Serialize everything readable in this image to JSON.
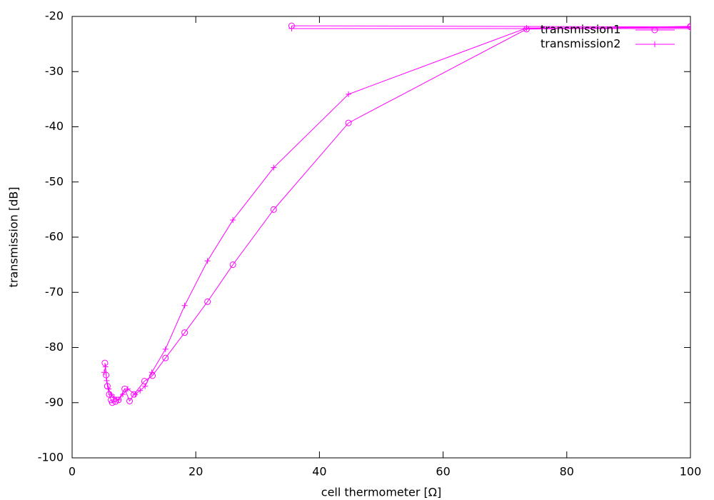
{
  "chart_data": {
    "type": "line",
    "xlabel": "cell thermometer [Ω]",
    "ylabel": "transmission [dB]",
    "xlim": [
      0,
      100
    ],
    "xticks": [
      0,
      20,
      40,
      60,
      80,
      100
    ],
    "ylim": [
      -100,
      -20
    ],
    "yticks": [
      -100,
      -90,
      -80,
      -70,
      -60,
      -50,
      -40,
      -30,
      -20
    ],
    "grid": false,
    "legend": "top right",
    "series": [
      {
        "name": "transmission1",
        "color": "#ff00ff",
        "marker": "circle",
        "x": [
          5.3,
          5.5,
          5.7,
          6.0,
          6.3,
          6.5,
          7.0,
          7.5,
          8.5,
          9.3,
          10.0,
          11.7,
          13.0,
          15.1,
          18.2,
          21.9,
          26.0,
          32.6,
          44.7,
          73.5,
          100,
          100,
          35.5
        ],
        "values": [
          -82.8,
          -85,
          -87,
          -88.5,
          -89.5,
          -90,
          -89.8,
          -89.5,
          -87.5,
          -89.7,
          -88.5,
          -86.1,
          -85.1,
          -81.9,
          -77.3,
          -71.7,
          -65,
          -55,
          -39.3,
          -22.3,
          -21.8,
          -21.9,
          -21.7
        ]
      },
      {
        "name": "transmission2",
        "color": "#ff00ff",
        "marker": "plus",
        "x": [
          5.2,
          5.4,
          5.6,
          5.9,
          6.3,
          6.8,
          7.5,
          8.2,
          9.0,
          10.2,
          11.0,
          11.8,
          12.9,
          15.1,
          18.2,
          21.9,
          26.0,
          32.6,
          44.7,
          73.5,
          100,
          100,
          35.5
        ],
        "values": [
          -84.5,
          -83.5,
          -86,
          -87.5,
          -88.5,
          -89,
          -89.5,
          -88.5,
          -87.5,
          -88.5,
          -87.8,
          -87,
          -84.5,
          -80.3,
          -72.4,
          -64.3,
          -56.9,
          -47.4,
          -34.1,
          -22.1,
          -22,
          -22.2,
          -22.2
        ]
      }
    ]
  }
}
